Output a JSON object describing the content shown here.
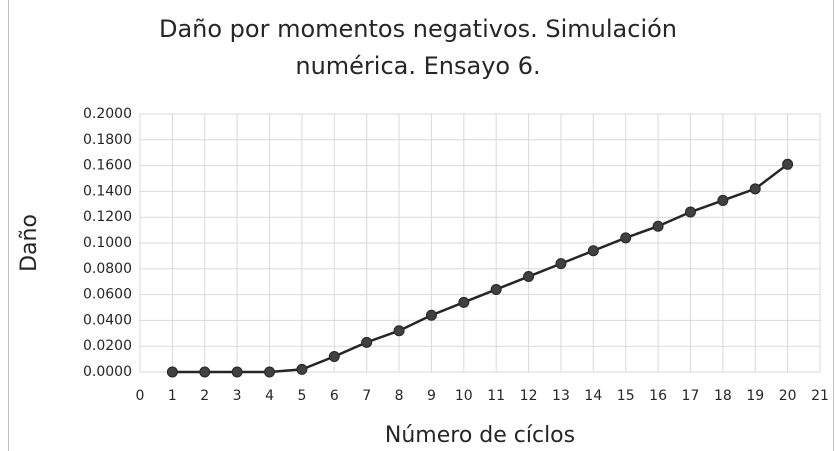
{
  "chart_data": {
    "type": "line",
    "title": [
      "Daño por momentos negativos. Simulación",
      "numérica. Ensayo 6."
    ],
    "x_label": "Número de cíclos",
    "y_label": "Daño",
    "x": [
      1,
      2,
      3,
      4,
      5,
      6,
      7,
      8,
      9,
      10,
      11,
      12,
      13,
      14,
      15,
      16,
      17,
      18,
      19,
      20
    ],
    "series": [
      {
        "color": "#262626",
        "values": [
          0,
          0,
          0,
          0,
          0.002,
          0.012,
          0.023,
          0.032,
          0.044,
          0.054,
          0.064,
          0.074,
          0.084,
          0.094,
          0.104,
          0.113,
          0.124,
          0.133,
          0.142,
          0.161
        ]
      }
    ],
    "xlim": [
      0,
      21
    ],
    "xticks": [
      0,
      1,
      2,
      3,
      4,
      5,
      6,
      7,
      8,
      9,
      10,
      11,
      12,
      13,
      14,
      15,
      16,
      17,
      18,
      19,
      20,
      21
    ],
    "ylim": [
      0,
      0.2
    ],
    "yticks": [
      {
        "value": 0,
        "label": "0.0000"
      },
      {
        "value": 0.02,
        "label": "0.0200"
      },
      {
        "value": 0.04,
        "label": "0.0400"
      },
      {
        "value": 0.06,
        "label": "0.0600"
      },
      {
        "value": 0.08,
        "label": "0.0800"
      },
      {
        "value": 0.1,
        "label": "0.1000"
      },
      {
        "value": 0.12,
        "label": "0.1200"
      },
      {
        "value": 0.14,
        "label": "0.1400"
      },
      {
        "value": 0.16,
        "label": "0.1600"
      },
      {
        "value": 0.18,
        "label": "0.1800"
      },
      {
        "value": 0.2,
        "label": "0.2000"
      }
    ],
    "grid": true
  }
}
